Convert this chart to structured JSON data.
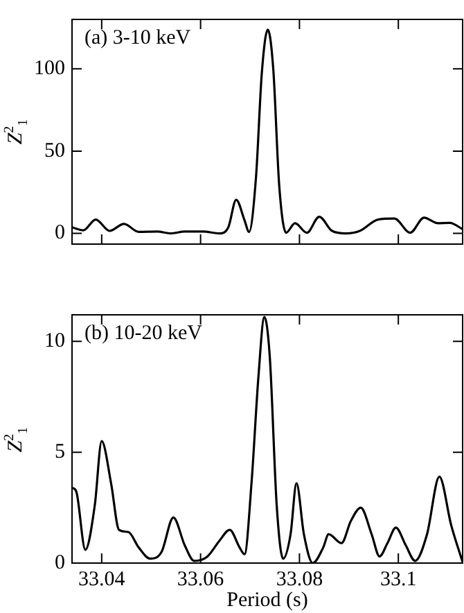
{
  "chart_data": [
    {
      "type": "line",
      "title": "(a) 3-10 keV",
      "ylabel": "Z$^{2}$$_{1}$",
      "color": "#000000",
      "tick_labels": "y",
      "xlim": [
        33.034,
        33.113
      ],
      "xticks": [
        33.04,
        33.06,
        33.08,
        33.1
      ],
      "ylim": [
        -6.5,
        130
      ],
      "yticks": [
        0,
        50,
        100
      ],
      "x": [
        33.0341,
        33.0363,
        33.0388,
        33.0416,
        33.0445,
        33.0475,
        33.0512,
        33.054,
        33.0568,
        33.0605,
        33.0638,
        33.0656,
        33.0672,
        33.0689,
        33.0698,
        33.0712,
        33.0724,
        33.0736,
        33.0747,
        33.0759,
        33.0773,
        33.0791,
        33.0815,
        33.084,
        33.0866,
        33.0894,
        33.0922,
        33.0959,
        33.0992,
        33.1024,
        33.1052,
        33.108,
        33.1104,
        33.113
      ],
      "values": [
        3.6,
        1.9,
        8.4,
        1.5,
        5.8,
        0.9,
        1.1,
        0,
        1.1,
        1.1,
        0,
        3.6,
        20.4,
        7.9,
        0.9,
        33.7,
        98,
        123.7,
        100,
        29.4,
        0.4,
        6.2,
        0.4,
        10.1,
        1.5,
        0,
        1.5,
        8.4,
        9.0,
        0.4,
        9.6,
        6.2,
        6.4,
        2.6
      ]
    },
    {
      "type": "line",
      "title": "(b) 10-20 keV",
      "ylabel": "Z$^{2}$$_{1}$",
      "xlabel": "Period (s)",
      "color": "#000000",
      "xlim": [
        33.034,
        33.113
      ],
      "xticks": [
        33.04,
        33.06,
        33.08,
        33.1
      ],
      "ylim": [
        0,
        11.2
      ],
      "yticks": [
        0,
        5,
        10
      ],
      "x": [
        33.0341,
        33.0349,
        33.0367,
        33.0386,
        33.04,
        33.0419,
        33.0435,
        33.0454,
        33.0475,
        33.0498,
        33.0521,
        33.0545,
        33.0568,
        33.0587,
        33.0614,
        33.0638,
        33.0659,
        33.0679,
        33.0689,
        33.0703,
        33.0717,
        33.0729,
        33.074,
        33.0754,
        33.0767,
        33.0782,
        33.0794,
        33.0809,
        33.0827,
        33.0848,
        33.0859,
        33.0885,
        33.0904,
        33.0924,
        33.0946,
        33.0962,
        33.0978,
        33.0995,
        33.1015,
        33.1034,
        33.1058,
        33.1083,
        33.1107,
        33.113
      ],
      "values": [
        3.4,
        3.2,
        0.6,
        2.6,
        5.5,
        3.6,
        1.5,
        1.4,
        0.7,
        0.2,
        0.5,
        2.05,
        0.8,
        0.1,
        0.3,
        1.0,
        1.5,
        0.7,
        0.4,
        3.6,
        8.4,
        11.1,
        9.3,
        2.6,
        0.2,
        1.3,
        3.6,
        1.3,
        0,
        0.7,
        1.3,
        0.9,
        1.9,
        2.5,
        1.3,
        0.3,
        0.9,
        1.6,
        0.8,
        0.1,
        1.3,
        3.9,
        1.7,
        0.04
      ]
    }
  ]
}
